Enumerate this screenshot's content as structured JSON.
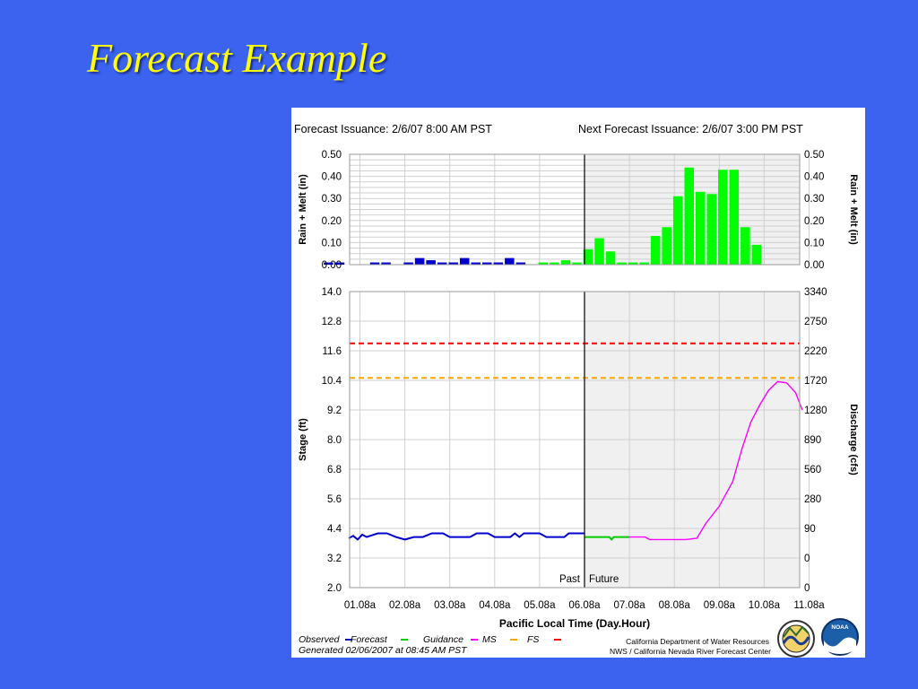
{
  "slide": {
    "title": "Forecast Example"
  },
  "header": {
    "issuance": "Forecast Issuance:  2/6/07  8:00 AM  PST",
    "next_issuance": "Next Forecast Issuance:  2/6/07  3:00 PM  PST"
  },
  "footer": {
    "generated": "Generated 02/06/2007  at 08:45 AM PST",
    "agency_line1": "California Department of Water Resources",
    "agency_line2": "NWS / California Nevada River Forecast Center",
    "noaa_label": "NOAA"
  },
  "legend": [
    {
      "label": "Observed",
      "color": "#0000cc"
    },
    {
      "label": "Forecast",
      "color": "#00cc00"
    },
    {
      "label": "Guidance",
      "color": "#ff00ff"
    },
    {
      "label": "MS",
      "color": "#ffa500"
    },
    {
      "label": "FS",
      "color": "#ff0000"
    }
  ],
  "chart_data": [
    {
      "type": "bar",
      "ylabel_left": "Rain + Melt (in)",
      "ylabel_right": "Rain + Melt (in)",
      "ylim": [
        0,
        0.5
      ],
      "yticks": [
        "0.50",
        "0.40",
        "0.30",
        "0.20",
        "0.10",
        "0.00"
      ],
      "grid": true,
      "divider_x": 5.0,
      "series": [
        {
          "name": "Observed",
          "color": "#0000cc",
          "points": [
            {
              "x": -0.7,
              "y": 0.01
            },
            {
              "x": -0.45,
              "y": 0.01
            },
            {
              "x": 0.33,
              "y": 0.01
            },
            {
              "x": 0.58,
              "y": 0.01
            },
            {
              "x": 1.08,
              "y": 0.01
            },
            {
              "x": 1.33,
              "y": 0.03
            },
            {
              "x": 1.58,
              "y": 0.02
            },
            {
              "x": 1.83,
              "y": 0.01
            },
            {
              "x": 2.08,
              "y": 0.01
            },
            {
              "x": 2.33,
              "y": 0.03
            },
            {
              "x": 2.58,
              "y": 0.01
            },
            {
              "x": 2.83,
              "y": 0.01
            },
            {
              "x": 3.08,
              "y": 0.01
            },
            {
              "x": 3.33,
              "y": 0.03
            },
            {
              "x": 3.58,
              "y": 0.01
            }
          ]
        },
        {
          "name": "Forecast",
          "color": "#00ff00",
          "points": [
            {
              "x": 4.08,
              "y": 0.01
            },
            {
              "x": 4.33,
              "y": 0.01
            },
            {
              "x": 4.58,
              "y": 0.02
            },
            {
              "x": 4.83,
              "y": 0.01
            },
            {
              "x": 5.08,
              "y": 0.07
            },
            {
              "x": 5.33,
              "y": 0.12
            },
            {
              "x": 5.58,
              "y": 0.06
            },
            {
              "x": 5.83,
              "y": 0.01
            },
            {
              "x": 6.08,
              "y": 0.01
            },
            {
              "x": 6.33,
              "y": 0.01
            },
            {
              "x": 6.58,
              "y": 0.13
            },
            {
              "x": 6.83,
              "y": 0.17
            },
            {
              "x": 7.08,
              "y": 0.31
            },
            {
              "x": 7.33,
              "y": 0.44
            },
            {
              "x": 7.58,
              "y": 0.33
            },
            {
              "x": 7.83,
              "y": 0.32
            },
            {
              "x": 8.08,
              "y": 0.43
            },
            {
              "x": 8.33,
              "y": 0.43
            },
            {
              "x": 8.58,
              "y": 0.17
            },
            {
              "x": 8.83,
              "y": 0.09
            }
          ]
        }
      ]
    },
    {
      "type": "line",
      "xlabel": "Pacific Local Time (Day.Hour)",
      "ylabel_left": "Stage (ft)",
      "ylabel_right": "Discharge (cfs)",
      "ylim": [
        2.0,
        14.0
      ],
      "yticks_left": [
        "14.0",
        "12.8",
        "11.6",
        "10.4",
        "9.2",
        "8.0",
        "6.8",
        "5.6",
        "4.4",
        "3.2",
        "2.0"
      ],
      "yticks_right": [
        "3340",
        "2750",
        "2220",
        "1720",
        "1280",
        "890",
        "560",
        "280",
        "90",
        "0",
        "0"
      ],
      "xticks": [
        "01.08a",
        "02.08a",
        "03.08a",
        "04.08a",
        "05.08a",
        "06.08a",
        "07.08a",
        "08.08a",
        "09.08a",
        "10.08a",
        "11.08a"
      ],
      "grid": true,
      "past_label": "Past",
      "future_label": "Future",
      "divider_x": 5.0,
      "thresholds": [
        {
          "name": "FS",
          "y": 11.9,
          "color": "#ff0000"
        },
        {
          "name": "MS",
          "y": 10.5,
          "color": "#ffa500"
        }
      ],
      "series": [
        {
          "name": "Observed",
          "color": "#0000cc",
          "points": [
            {
              "x": -0.25,
              "y": 4.0
            },
            {
              "x": -0.15,
              "y": 4.1
            },
            {
              "x": -0.05,
              "y": 3.95
            },
            {
              "x": 0.05,
              "y": 4.15
            },
            {
              "x": 0.15,
              "y": 4.05
            },
            {
              "x": 0.4,
              "y": 4.2
            },
            {
              "x": 0.6,
              "y": 4.2
            },
            {
              "x": 0.8,
              "y": 4.05
            },
            {
              "x": 1.0,
              "y": 3.95
            },
            {
              "x": 1.2,
              "y": 4.05
            },
            {
              "x": 1.4,
              "y": 4.05
            },
            {
              "x": 1.6,
              "y": 4.2
            },
            {
              "x": 1.85,
              "y": 4.2
            },
            {
              "x": 2.0,
              "y": 4.05
            },
            {
              "x": 2.45,
              "y": 4.05
            },
            {
              "x": 2.6,
              "y": 4.2
            },
            {
              "x": 2.85,
              "y": 4.2
            },
            {
              "x": 3.0,
              "y": 4.05
            },
            {
              "x": 3.35,
              "y": 4.05
            },
            {
              "x": 3.45,
              "y": 4.2
            },
            {
              "x": 3.55,
              "y": 4.05
            },
            {
              "x": 3.65,
              "y": 4.2
            },
            {
              "x": 4.0,
              "y": 4.2
            },
            {
              "x": 4.15,
              "y": 4.05
            },
            {
              "x": 4.55,
              "y": 4.05
            },
            {
              "x": 4.65,
              "y": 4.2
            },
            {
              "x": 5.0,
              "y": 4.2
            }
          ]
        },
        {
          "name": "Forecast",
          "color": "#00cc00",
          "points": [
            {
              "x": 5.0,
              "y": 4.05
            },
            {
              "x": 5.55,
              "y": 4.05
            },
            {
              "x": 5.6,
              "y": 3.95
            },
            {
              "x": 5.65,
              "y": 4.05
            },
            {
              "x": 6.0,
              "y": 4.05
            }
          ]
        },
        {
          "name": "Guidance",
          "color": "#ff00ff",
          "points": [
            {
              "x": 6.0,
              "y": 4.05
            },
            {
              "x": 6.35,
              "y": 4.05
            },
            {
              "x": 6.45,
              "y": 3.95
            },
            {
              "x": 7.25,
              "y": 3.95
            },
            {
              "x": 7.5,
              "y": 4.0
            },
            {
              "x": 7.7,
              "y": 4.6
            },
            {
              "x": 8.0,
              "y": 5.3
            },
            {
              "x": 8.3,
              "y": 6.3
            },
            {
              "x": 8.5,
              "y": 7.6
            },
            {
              "x": 8.7,
              "y": 8.7
            },
            {
              "x": 8.9,
              "y": 9.4
            },
            {
              "x": 9.1,
              "y": 10.0
            },
            {
              "x": 9.3,
              "y": 10.35
            },
            {
              "x": 9.5,
              "y": 10.3
            },
            {
              "x": 9.7,
              "y": 9.9
            },
            {
              "x": 9.85,
              "y": 9.2
            }
          ]
        }
      ]
    }
  ]
}
